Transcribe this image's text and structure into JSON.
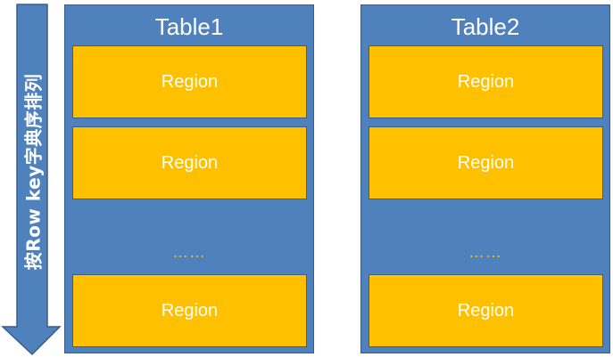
{
  "arrow": {
    "label": "按Row key字典序排列"
  },
  "tables": [
    {
      "title": "Table1",
      "regions": [
        "Region",
        "Region",
        "Region"
      ],
      "ellipsis": "……"
    },
    {
      "title": "Table2",
      "regions": [
        "Region",
        "Region",
        "Region"
      ],
      "ellipsis": "……"
    }
  ],
  "colors": {
    "table_fill": "#4f81bd",
    "table_border": "#385d8a",
    "region_fill": "#ffc000",
    "text": "#ffffff"
  }
}
